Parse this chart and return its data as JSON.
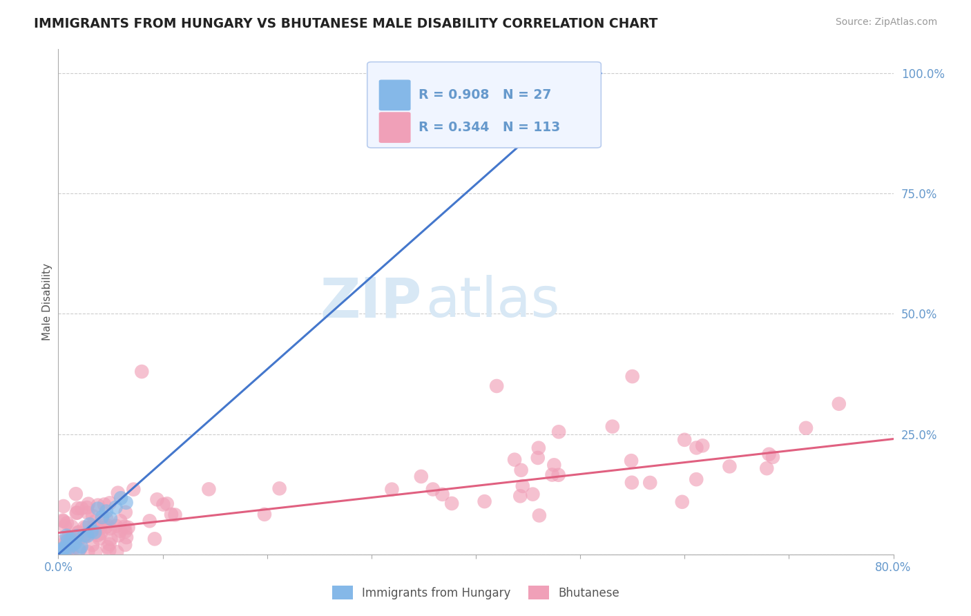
{
  "title": "IMMIGRANTS FROM HUNGARY VS BHUTANESE MALE DISABILITY CORRELATION CHART",
  "source": "Source: ZipAtlas.com",
  "ylabel": "Male Disability",
  "xlim": [
    0.0,
    0.8
  ],
  "ylim": [
    0.0,
    1.05
  ],
  "hungary_R": 0.908,
  "hungary_N": 27,
  "bhutan_R": 0.344,
  "bhutan_N": 113,
  "hungary_color": "#85b8e8",
  "bhutan_color": "#f0a0b8",
  "hungary_line_color": "#4477cc",
  "bhutan_line_color": "#e06080",
  "background_color": "#ffffff",
  "grid_color": "#cccccc",
  "tick_color": "#6699cc",
  "title_color": "#222222",
  "source_color": "#999999",
  "ylabel_color": "#555555",
  "watermark_zip": "ZIP",
  "watermark_atlas": "atlas",
  "watermark_color": "#d8e8f5",
  "legend_box_bg": "#f0f5ff",
  "legend_box_edge": "#b8ccee",
  "hungary_line_x0": 0.0,
  "hungary_line_y0": 0.0,
  "hungary_line_x1": 0.52,
  "hungary_line_y1": 1.0,
  "bhutan_line_x0": 0.0,
  "bhutan_line_y0": 0.045,
  "bhutan_line_x1": 0.8,
  "bhutan_line_y1": 0.24
}
